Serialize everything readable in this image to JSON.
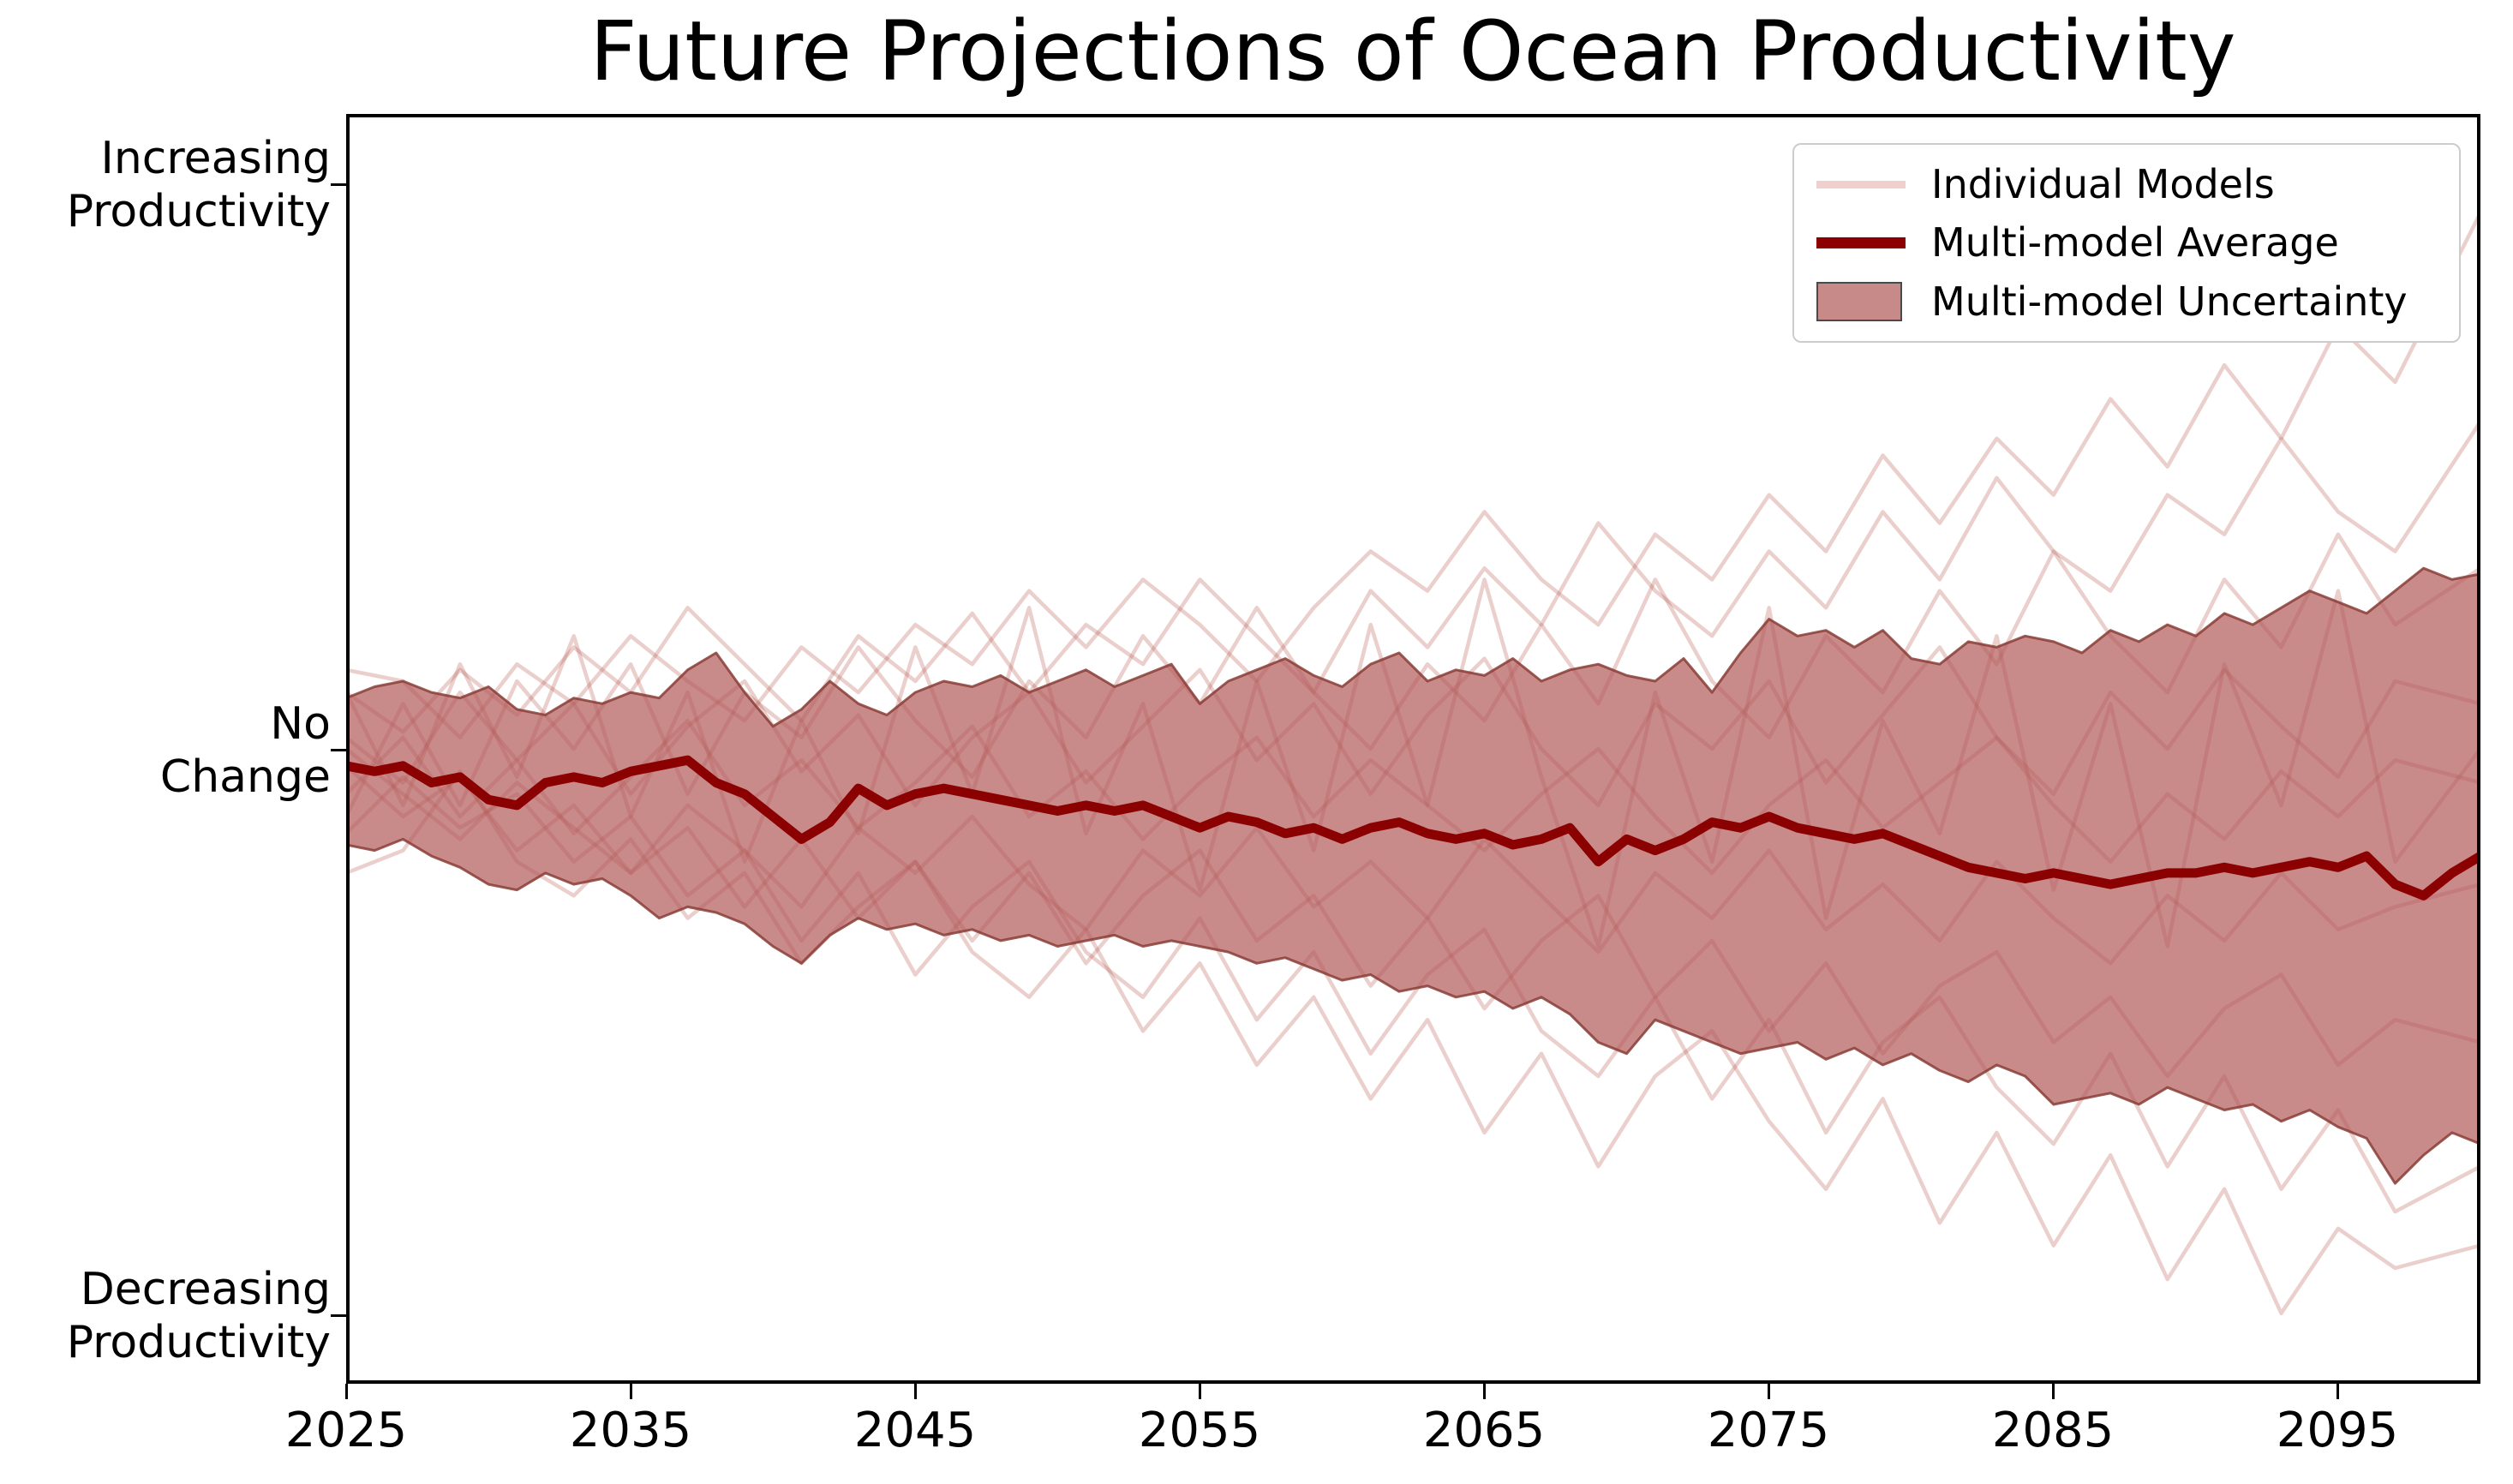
{
  "figure": {
    "title": "Future Projections of Ocean Productivity",
    "background_color": "#ffffff"
  },
  "y_axis": {
    "tick_labels": [
      {
        "lines": [
          "Increasing",
          "Productivity"
        ],
        "value": 1
      },
      {
        "lines": [
          "No",
          "Change"
        ],
        "value": 0
      },
      {
        "lines": [
          "Decreasing",
          "Productivity"
        ],
        "value": -1
      }
    ]
  },
  "x_axis": {
    "tick_labels": [
      "2025",
      "2035",
      "2045",
      "2055",
      "2065",
      "2075",
      "2085",
      "2095"
    ],
    "tick_years": [
      2025,
      2035,
      2045,
      2055,
      2065,
      2075,
      2085,
      2095
    ]
  },
  "legend": {
    "items": [
      {
        "label": "Individual Models",
        "swatch": "line",
        "color": "#f0d0cd"
      },
      {
        "label": "Multi-model Average",
        "swatch": "line",
        "color": "#8b0000"
      },
      {
        "label": "Multi-model Uncertainty",
        "swatch": "patch",
        "color": "#c88989",
        "edge_color": "#4a4a4a"
      }
    ]
  },
  "chart_data": {
    "type": "line",
    "title": "Future Projections of Ocean Productivity",
    "xlabel": "",
    "ylabel": "",
    "xlim": [
      2025,
      2100
    ],
    "ylim": [
      -1.125,
      1.125
    ],
    "grid": false,
    "legend_position": "upper right",
    "y_tick_values": [
      1,
      0,
      -1
    ],
    "y_tick_meanings": [
      "Increasing Productivity",
      "No Change",
      "Decreasing Productivity"
    ],
    "x_ticks": [
      2025,
      2035,
      2045,
      2055,
      2065,
      2075,
      2085,
      2095
    ],
    "years_start": 2025,
    "years_step": 1,
    "mean": [
      -0.03,
      -0.04,
      -0.03,
      -0.06,
      -0.05,
      -0.09,
      -0.1,
      -0.06,
      -0.05,
      -0.06,
      -0.04,
      -0.03,
      -0.02,
      -0.06,
      -0.08,
      -0.12,
      -0.16,
      -0.13,
      -0.07,
      -0.1,
      -0.08,
      -0.07,
      -0.08,
      -0.09,
      -0.1,
      -0.11,
      -0.1,
      -0.11,
      -0.1,
      -0.12,
      -0.14,
      -0.12,
      -0.13,
      -0.15,
      -0.14,
      -0.16,
      -0.14,
      -0.13,
      -0.15,
      -0.16,
      -0.15,
      -0.17,
      -0.16,
      -0.14,
      -0.2,
      -0.16,
      -0.18,
      -0.16,
      -0.13,
      -0.14,
      -0.12,
      -0.14,
      -0.15,
      -0.16,
      -0.15,
      -0.17,
      -0.19,
      -0.21,
      -0.22,
      -0.23,
      -0.22,
      -0.23,
      -0.24,
      -0.23,
      -0.22,
      -0.22,
      -0.21,
      -0.22,
      -0.21,
      -0.2,
      -0.21,
      -0.19,
      -0.24,
      -0.26,
      -0.22,
      -0.19
    ],
    "band_upper": [
      0.09,
      0.11,
      0.12,
      0.1,
      0.09,
      0.11,
      0.07,
      0.06,
      0.09,
      0.08,
      0.1,
      0.09,
      0.14,
      0.17,
      0.1,
      0.04,
      0.07,
      0.12,
      0.08,
      0.06,
      0.1,
      0.12,
      0.11,
      0.13,
      0.1,
      0.12,
      0.14,
      0.11,
      0.13,
      0.15,
      0.08,
      0.12,
      0.14,
      0.16,
      0.13,
      0.11,
      0.15,
      0.17,
      0.12,
      0.14,
      0.13,
      0.16,
      0.12,
      0.14,
      0.15,
      0.13,
      0.12,
      0.16,
      0.1,
      0.17,
      0.23,
      0.2,
      0.21,
      0.18,
      0.21,
      0.16,
      0.15,
      0.19,
      0.18,
      0.2,
      0.19,
      0.17,
      0.21,
      0.19,
      0.22,
      0.2,
      0.24,
      0.22,
      0.25,
      0.28,
      0.26,
      0.24,
      0.28,
      0.32,
      0.3,
      0.31
    ],
    "band_lower": [
      -0.17,
      -0.18,
      -0.16,
      -0.19,
      -0.21,
      -0.24,
      -0.25,
      -0.22,
      -0.24,
      -0.23,
      -0.26,
      -0.3,
      -0.28,
      -0.29,
      -0.31,
      -0.35,
      -0.38,
      -0.33,
      -0.3,
      -0.32,
      -0.31,
      -0.33,
      -0.32,
      -0.34,
      -0.33,
      -0.35,
      -0.34,
      -0.33,
      -0.35,
      -0.34,
      -0.35,
      -0.36,
      -0.38,
      -0.37,
      -0.39,
      -0.41,
      -0.4,
      -0.43,
      -0.42,
      -0.44,
      -0.43,
      -0.46,
      -0.44,
      -0.47,
      -0.52,
      -0.54,
      -0.48,
      -0.5,
      -0.52,
      -0.54,
      -0.53,
      -0.52,
      -0.55,
      -0.53,
      -0.56,
      -0.54,
      -0.57,
      -0.59,
      -0.56,
      -0.58,
      -0.63,
      -0.62,
      -0.61,
      -0.63,
      -0.6,
      -0.62,
      -0.64,
      -0.63,
      -0.66,
      -0.64,
      -0.67,
      -0.69,
      -0.77,
      -0.72,
      -0.68,
      -0.7
    ],
    "model_years": [
      2025,
      2027,
      2029,
      2031,
      2033,
      2035,
      2037,
      2039,
      2041,
      2043,
      2045,
      2047,
      2049,
      2051,
      2053,
      2055,
      2057,
      2059,
      2061,
      2063,
      2065,
      2067,
      2069,
      2071,
      2073,
      2075,
      2077,
      2079,
      2081,
      2083,
      2085,
      2087,
      2089,
      2091,
      2093,
      2095,
      2097,
      2100
    ],
    "individual_models": [
      [
        0.14,
        0.12,
        0.02,
        0.15,
        0.08,
        0.2,
        0.12,
        0.05,
        0.18,
        0.1,
        0.22,
        0.15,
        0.28,
        0.18,
        0.3,
        0.22,
        0.12,
        0.25,
        0.35,
        0.28,
        0.42,
        0.3,
        0.22,
        0.38,
        0.3,
        0.45,
        0.35,
        0.52,
        0.4,
        0.55,
        0.45,
        0.62,
        0.5,
        0.68,
        0.55,
        0.75,
        0.65,
        0.95
      ],
      [
        0.1,
        0.03,
        0.14,
        0.06,
        0.18,
        0.1,
        0.25,
        0.15,
        0.05,
        0.2,
        0.12,
        0.24,
        0.1,
        0.22,
        0.15,
        0.3,
        0.2,
        0.1,
        0.28,
        0.18,
        0.32,
        0.22,
        0.4,
        0.28,
        0.2,
        0.35,
        0.25,
        0.42,
        0.3,
        0.48,
        0.35,
        0.28,
        0.45,
        0.38,
        0.55,
        0.42,
        0.35,
        0.58
      ],
      [
        -0.12,
        0.08,
        -0.1,
        0.12,
        0.0,
        0.15,
        -0.08,
        0.1,
        0.02,
        0.18,
        0.05,
        -0.05,
        0.12,
        0.02,
        0.2,
        0.08,
        0.25,
        0.1,
        0.0,
        0.15,
        0.05,
        0.22,
        0.08,
        0.3,
        0.12,
        0.02,
        0.2,
        0.1,
        0.28,
        0.15,
        0.35,
        0.2,
        0.1,
        0.3,
        0.18,
        0.38,
        0.22,
        0.32
      ],
      [
        0.02,
        -0.06,
        0.1,
        -0.02,
        0.08,
        -0.08,
        0.04,
        0.12,
        -0.04,
        0.06,
        -0.1,
        0.02,
        0.1,
        -0.06,
        0.04,
        0.14,
        -0.02,
        0.08,
        -0.08,
        0.06,
        0.16,
        0.0,
        -0.1,
        0.08,
        0.0,
        0.12,
        -0.06,
        0.06,
        0.18,
        0.02,
        -0.08,
        0.1,
        0.0,
        0.14,
        0.04,
        -0.05,
        0.12,
        0.08
      ],
      [
        -0.08,
        0.02,
        -0.12,
        -0.02,
        -0.15,
        -0.05,
        0.05,
        -0.1,
        -0.02,
        -0.14,
        -0.06,
        0.04,
        -0.12,
        -0.04,
        -0.16,
        -0.06,
        0.02,
        -0.12,
        -0.02,
        -0.1,
        -0.18,
        -0.08,
        0.0,
        -0.12,
        -0.22,
        -0.1,
        -0.02,
        -0.14,
        -0.06,
        0.02,
        -0.1,
        -0.2,
        -0.08,
        -0.16,
        -0.04,
        -0.12,
        -0.02,
        -0.06
      ],
      [
        0.0,
        -0.08,
        -0.16,
        -0.06,
        -0.14,
        -0.22,
        -0.1,
        -0.18,
        -0.28,
        -0.14,
        -0.22,
        -0.12,
        -0.24,
        -0.32,
        -0.18,
        -0.26,
        -0.14,
        -0.28,
        -0.2,
        -0.3,
        -0.16,
        -0.26,
        -0.36,
        -0.22,
        -0.3,
        -0.18,
        -0.32,
        -0.24,
        -0.34,
        -0.2,
        -0.3,
        -0.38,
        -0.26,
        -0.34,
        -0.22,
        -0.32,
        -0.28,
        -0.24
      ],
      [
        -0.03,
        -0.12,
        -0.05,
        -0.18,
        -0.1,
        -0.22,
        -0.14,
        -0.28,
        -0.16,
        -0.3,
        -0.2,
        -0.34,
        -0.22,
        -0.38,
        -0.26,
        -0.18,
        -0.34,
        -0.26,
        -0.42,
        -0.3,
        -0.46,
        -0.34,
        -0.26,
        -0.44,
        -0.34,
        -0.5,
        -0.38,
        -0.54,
        -0.42,
        -0.36,
        -0.52,
        -0.44,
        -0.58,
        -0.46,
        -0.4,
        -0.56,
        -0.48,
        -0.52
      ],
      [
        -0.15,
        -0.05,
        -0.14,
        -0.08,
        -0.2,
        -0.12,
        -0.26,
        -0.18,
        -0.34,
        -0.22,
        -0.4,
        -0.28,
        -0.2,
        -0.36,
        -0.44,
        -0.3,
        -0.48,
        -0.36,
        -0.54,
        -0.4,
        -0.32,
        -0.5,
        -0.58,
        -0.44,
        -0.62,
        -0.48,
        -0.68,
        -0.52,
        -0.44,
        -0.6,
        -0.7,
        -0.54,
        -0.74,
        -0.58,
        -0.78,
        -0.64,
        -0.82,
        -0.74
      ],
      [
        -0.22,
        -0.18,
        -0.04,
        -0.2,
        -0.26,
        -0.16,
        -0.3,
        -0.22,
        -0.38,
        -0.28,
        -0.2,
        -0.36,
        -0.44,
        -0.32,
        -0.5,
        -0.38,
        -0.56,
        -0.44,
        -0.62,
        -0.48,
        -0.68,
        -0.54,
        -0.74,
        -0.58,
        -0.5,
        -0.66,
        -0.78,
        -0.62,
        -0.84,
        -0.68,
        -0.88,
        -0.72,
        -0.94,
        -0.78,
        -1.0,
        -0.85,
        -0.92,
        -0.88
      ],
      [
        0.1,
        -0.1,
        0.15,
        -0.05,
        0.2,
        -0.12,
        0.1,
        -0.2,
        0.05,
        -0.15,
        0.18,
        -0.08,
        0.25,
        -0.15,
        0.08,
        -0.25,
        0.12,
        -0.18,
        0.22,
        -0.1,
        0.3,
        -0.05,
        -0.35,
        0.1,
        -0.2,
        0.25,
        -0.3,
        0.05,
        -0.15,
        0.2,
        -0.25,
        0.08,
        -0.35,
        0.15,
        -0.1,
        0.28,
        -0.2,
        0.0
      ]
    ],
    "colors": {
      "mean_line": "#8b0000",
      "band_fill": "#b25858",
      "band_fill_opacity": 0.7,
      "band_edge": "#8a3d36",
      "band_edge_opacity": 0.85,
      "model_line": "#bb5f55",
      "model_line_opacity": 0.3,
      "axis": "#000000"
    }
  }
}
